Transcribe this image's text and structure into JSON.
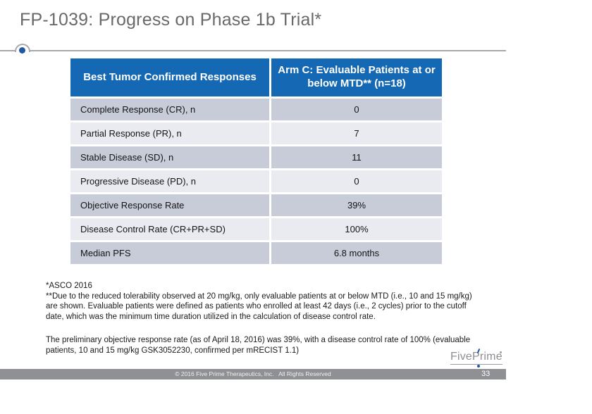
{
  "slide": {
    "title": "FP-1039: Progress on Phase 1b Trial*",
    "page_number": "33",
    "footer_copyright": "© 2016 Five Prime Therapeutics, Inc.   All Rights Reserved",
    "logo_text": "FivePrime"
  },
  "table": {
    "columns": [
      "Best Tumor Confirmed Responses",
      "Arm C: Evaluable Patients at or below MTD** (n=18)"
    ],
    "rows": [
      {
        "label": "Complete Response (CR), n",
        "value": "0"
      },
      {
        "label": "Partial Response (PR), n",
        "value": "7"
      },
      {
        "label": "Stable Disease (SD), n",
        "value": "11"
      },
      {
        "label": "Progressive Disease (PD), n",
        "value": "0"
      },
      {
        "label": "Objective Response Rate",
        "value": "39%"
      },
      {
        "label": "Disease Control Rate (CR+PR+SD)",
        "value": "100%"
      },
      {
        "label": "Median PFS",
        "value": "6.8 months"
      }
    ]
  },
  "notes": {
    "asco_line": "*ASCO 2016",
    "mtd_note": "**Due to the reduced tolerability observed at 20 mg/kg, only evaluable patients at or below MTD (i.e., 10 and 15 mg/kg) are shown. Evaluable patients were defined as patients who enrolled at least 42 days (i.e., 2 cycles) prior to the cutoff date, which was the minimum time duration utilized in the calculation of disease control rate.",
    "summary_paragraph": "The preliminary objective response rate (as of April 18, 2016) was 39%, with a disease control rate of 100% (evaluable patients, 10 and 15 mg/kg GSK3052230, confirmed per mRECIST 1.1)"
  },
  "colors": {
    "header_blue": "#1568b3",
    "row_dark": "#c8ccd8",
    "row_light": "#e9ebf1",
    "footer_gray": "#8e9094",
    "line_gray": "#a8a8a8",
    "title_gray": "#696969",
    "accent_blue": "#2157a5"
  }
}
